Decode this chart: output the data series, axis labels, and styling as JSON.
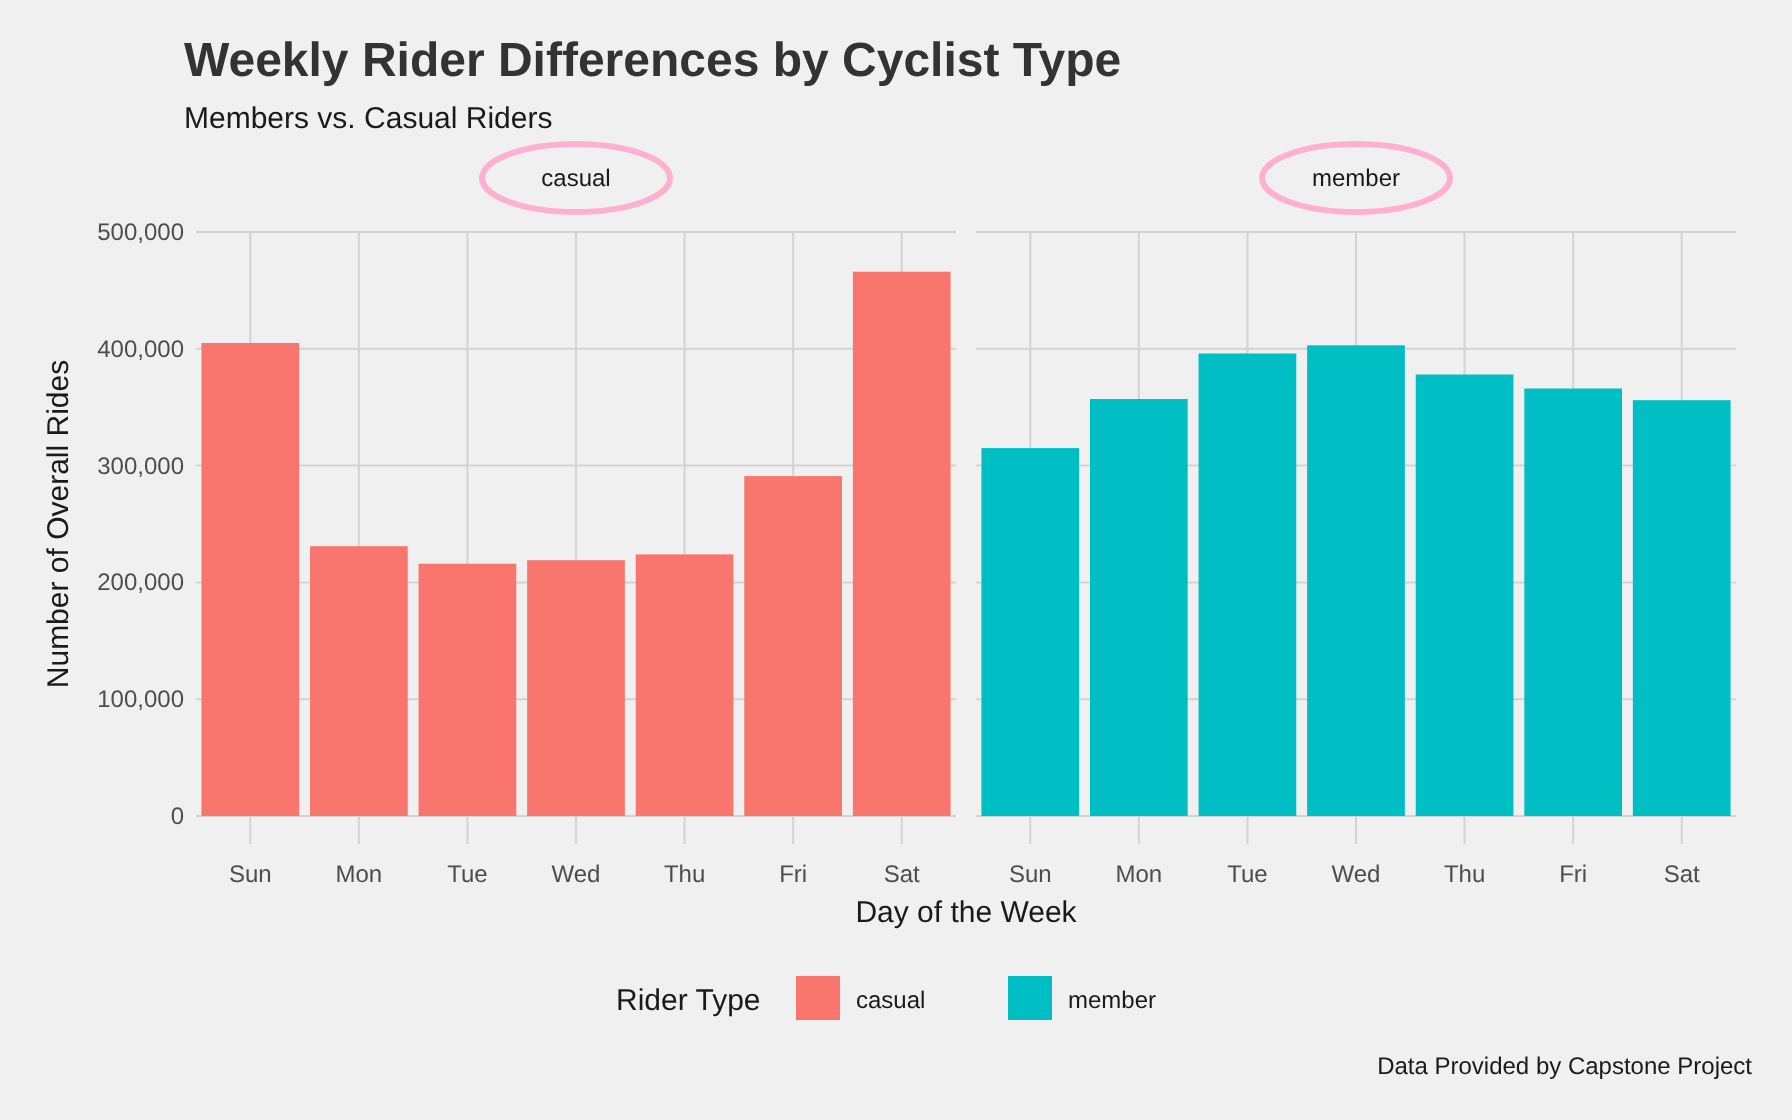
{
  "chart_data": [
    {
      "type": "bar",
      "title": "Weekly Rider Differences by Cyclist Type",
      "subtitle": "Members vs. Casual Riders",
      "xlabel": "Day of the Week",
      "ylabel": "Number of Overall Rides",
      "legend_title": "Rider Type",
      "legend": "bottom",
      "grid": true,
      "annotations": [
        "casual",
        "Data Provided by Capstone Project"
      ],
      "categories": [
        "Sun",
        "Mon",
        "Tue",
        "Wed",
        "Thu",
        "Fri",
        "Sat"
      ],
      "series": [
        {
          "name": "casual",
          "color": "#f8766d",
          "values": [
            405000,
            231000,
            216000,
            219000,
            224000,
            291000,
            466000
          ]
        }
      ],
      "ylim": [
        0,
        500000
      ],
      "yticks": [
        {
          "value": 0,
          "label": "0"
        },
        {
          "value": 100000,
          "label": "100,000"
        },
        {
          "value": 200000,
          "label": "200,000"
        },
        {
          "value": 300000,
          "label": "300,000"
        },
        {
          "value": 400000,
          "label": "400,000"
        },
        {
          "value": 500000,
          "label": "500,000"
        }
      ]
    },
    {
      "type": "bar",
      "grid": true,
      "tick_labels": "x",
      "annotations": [
        "member"
      ],
      "categories": [
        "Sun",
        "Mon",
        "Tue",
        "Wed",
        "Thu",
        "Fri",
        "Sat"
      ],
      "series": [
        {
          "name": "member",
          "color": "#00bfc4",
          "values": [
            315000,
            357000,
            396000,
            403000,
            378000,
            366000,
            356000
          ]
        }
      ],
      "ylim": [
        0,
        500000
      ],
      "yticks": [
        {
          "value": 0,
          "label": null
        },
        {
          "value": 100000,
          "label": null
        },
        {
          "value": 200000,
          "label": null
        },
        {
          "value": 300000,
          "label": null
        },
        {
          "value": 400000,
          "label": null
        },
        {
          "value": 500000,
          "label": null
        }
      ]
    }
  ]
}
